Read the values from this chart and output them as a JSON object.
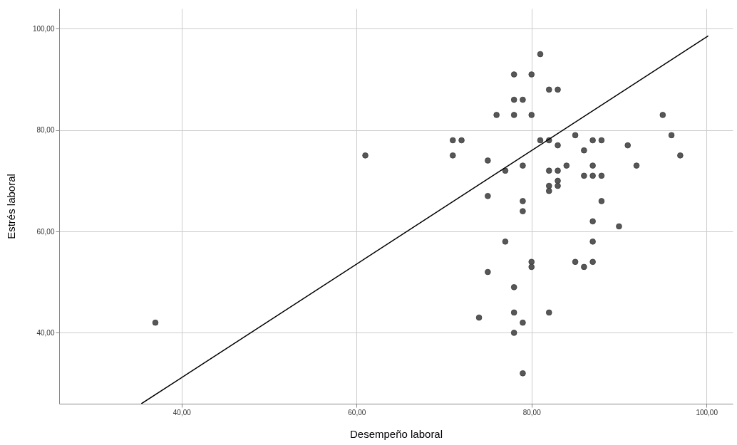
{
  "chart_data": {
    "type": "scatter",
    "xlabel": "Desempeño laboral",
    "ylabel": "Estrés laboral",
    "xlim": [
      26,
      103
    ],
    "ylim": [
      26,
      104
    ],
    "xticks": [
      {
        "value": 40,
        "label": "40,00"
      },
      {
        "value": 60,
        "label": "60,00"
      },
      {
        "value": 80,
        "label": "80,00"
      },
      {
        "value": 100,
        "label": "100,00"
      }
    ],
    "yticks": [
      {
        "value": 40,
        "label": "40,00"
      },
      {
        "value": 60,
        "label": "60,00"
      },
      {
        "value": 80,
        "label": "80,00"
      },
      {
        "value": 100,
        "label": "100,00"
      }
    ],
    "grid": true,
    "series": [
      {
        "marker": "circle",
        "color": "#575757",
        "x": [
          37,
          61,
          81,
          78,
          80,
          82,
          83,
          78,
          79,
          76,
          78,
          80,
          95,
          71,
          72,
          85,
          96,
          81,
          82,
          87,
          88,
          83,
          91,
          86,
          71,
          97,
          75,
          79,
          84,
          87,
          92,
          77,
          82,
          83,
          86,
          87,
          88,
          83,
          83,
          82,
          82,
          75,
          79,
          88,
          79,
          87,
          90,
          77,
          87,
          80,
          80,
          85,
          86,
          87,
          75,
          78,
          74,
          78,
          82,
          79,
          78,
          79
        ],
        "values": [
          42,
          75,
          95,
          91,
          91,
          88,
          88,
          86,
          86,
          83,
          83,
          83,
          83,
          78,
          78,
          79,
          79,
          78,
          78,
          78,
          78,
          77,
          77,
          76,
          75,
          75,
          74,
          73,
          73,
          73,
          73,
          72,
          72,
          72,
          71,
          71,
          71,
          70,
          69,
          69,
          68,
          67,
          66,
          66,
          64,
          62,
          61,
          58,
          58,
          54,
          53,
          54,
          53,
          54,
          52,
          49,
          43,
          44,
          44,
          42,
          40,
          32
        ]
      },
      {
        "type": "line",
        "marker": "none",
        "color": "#000000",
        "x": [
          35.4,
          100.2
        ],
        "values": [
          26,
          98.6
        ]
      }
    ]
  }
}
